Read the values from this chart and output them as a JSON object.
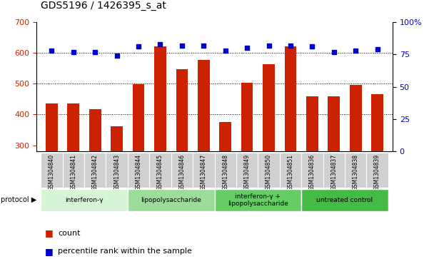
{
  "title": "GDS5196 / 1426395_s_at",
  "samples": [
    "GSM1304840",
    "GSM1304841",
    "GSM1304842",
    "GSM1304843",
    "GSM1304844",
    "GSM1304845",
    "GSM1304846",
    "GSM1304847",
    "GSM1304848",
    "GSM1304849",
    "GSM1304850",
    "GSM1304851",
    "GSM1304836",
    "GSM1304837",
    "GSM1304838",
    "GSM1304839"
  ],
  "counts": [
    435,
    437,
    418,
    362,
    498,
    622,
    548,
    578,
    375,
    503,
    562,
    622,
    458,
    460,
    497,
    467
  ],
  "percentiles": [
    78,
    77,
    77,
    74,
    81,
    83,
    82,
    82,
    78,
    80,
    82,
    82,
    81,
    77,
    78,
    79
  ],
  "protocols": [
    {
      "label": "interferon-γ",
      "start": 0,
      "end": 4,
      "color": "#d6f5d6"
    },
    {
      "label": "lipopolysaccharide",
      "start": 4,
      "end": 8,
      "color": "#99dd99"
    },
    {
      "label": "interferon-γ +\nlipopolysaccharide",
      "start": 8,
      "end": 12,
      "color": "#66cc66"
    },
    {
      "label": "untreated control",
      "start": 12,
      "end": 16,
      "color": "#44bb44"
    }
  ],
  "bar_color": "#cc2200",
  "dot_color": "#0000cc",
  "ylim_left": [
    280,
    700
  ],
  "ylim_right": [
    0,
    100
  ],
  "yticks_left": [
    300,
    400,
    500,
    600,
    700
  ],
  "yticks_right": [
    0,
    25,
    50,
    75,
    100
  ],
  "grid_values": [
    400,
    500,
    600
  ],
  "background_color": "#ffffff",
  "title_fontsize": 10,
  "tick_label_color_left": "#cc2200",
  "tick_label_color_right": "#0000cc",
  "sample_bg_color": "#d0d0d0",
  "sample_border_color": "#ffffff"
}
